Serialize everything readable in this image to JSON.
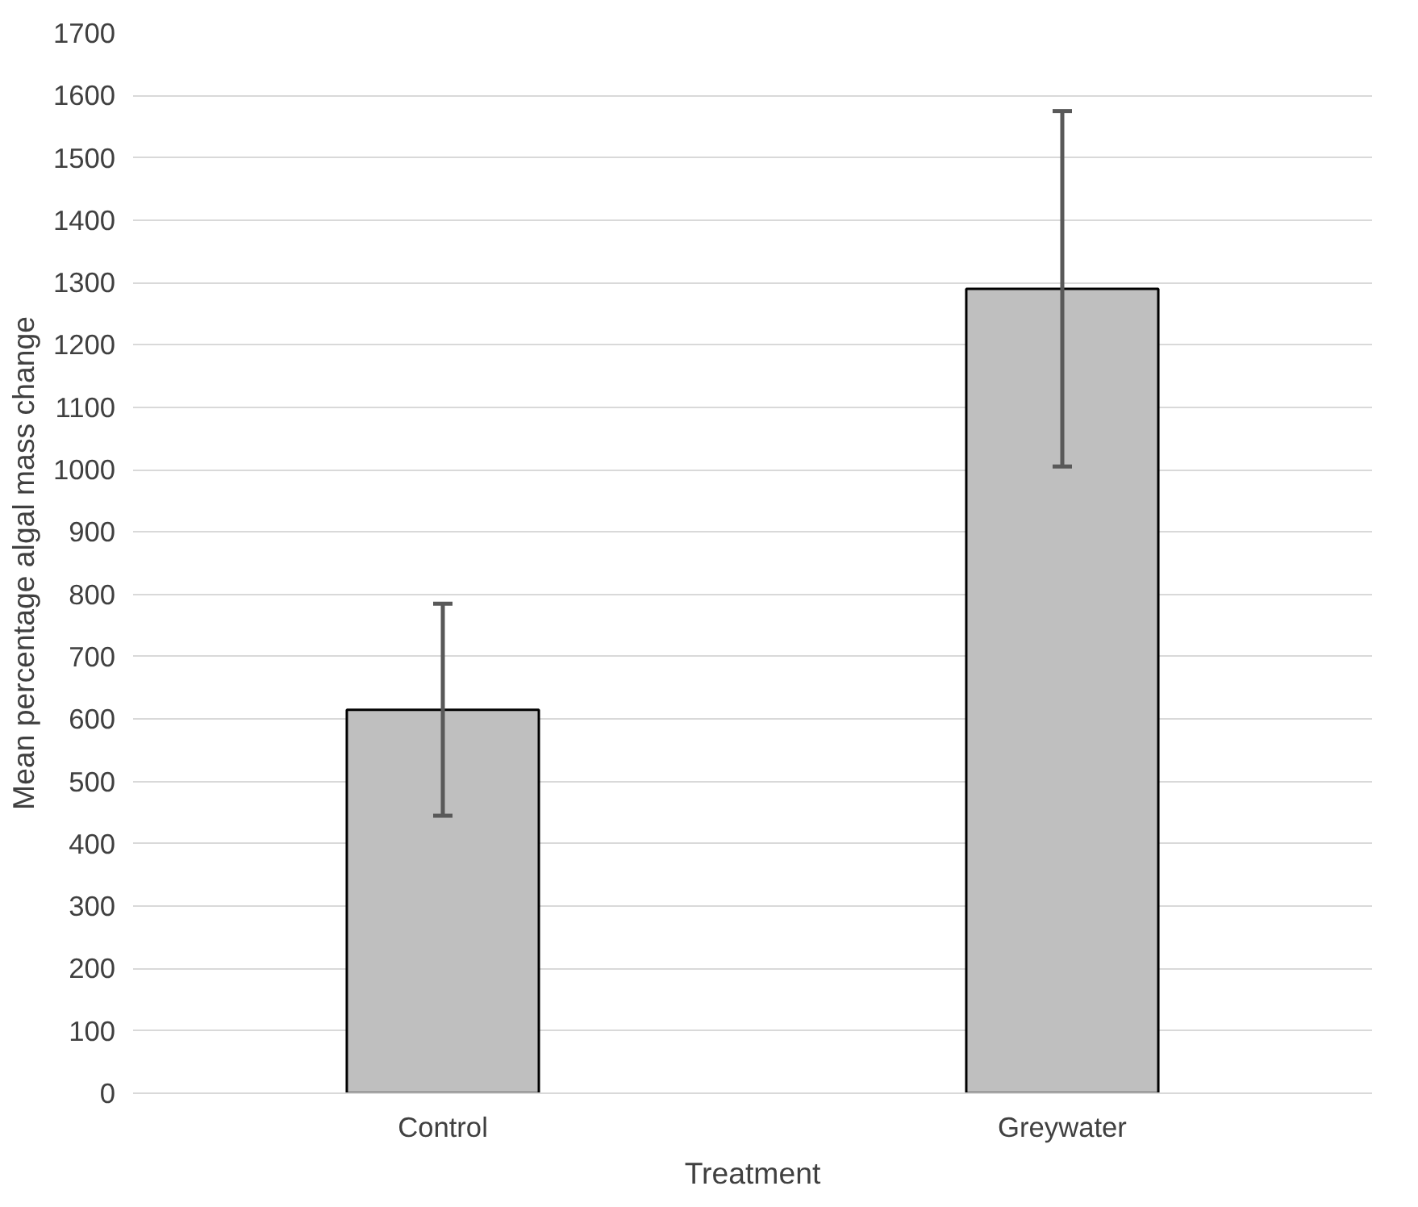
{
  "chart_data": {
    "type": "bar",
    "xlabel": "Treatment",
    "ylabel": "Mean percentage algal mass change",
    "categories": [
      "Control",
      "Greywater"
    ],
    "values": [
      615,
      1290
    ],
    "errors": [
      170,
      285
    ],
    "color": "#bfbfbf",
    "ylim": [
      0,
      1700
    ],
    "yticks": [
      0,
      100,
      200,
      300,
      400,
      500,
      600,
      700,
      800,
      900,
      1000,
      1100,
      1200,
      1300,
      1400,
      1500,
      1600,
      1700
    ],
    "grid": "y"
  }
}
